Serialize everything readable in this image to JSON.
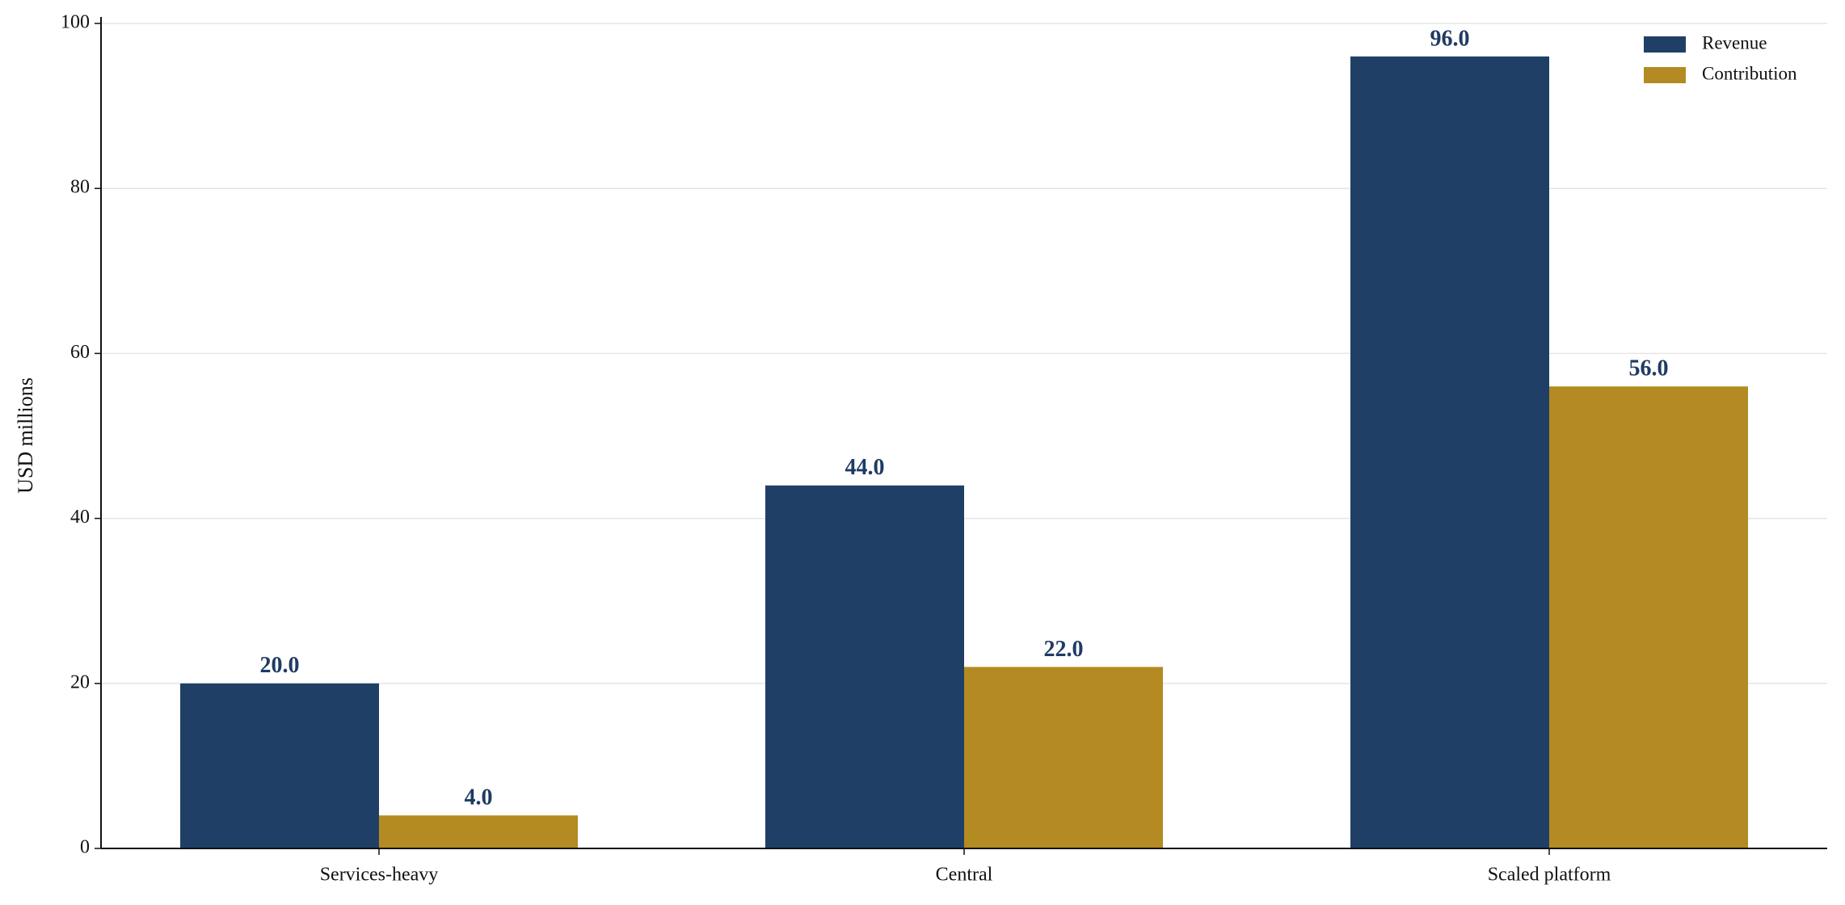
{
  "chart_data": {
    "type": "bar",
    "y_label": "USD millions",
    "categories": [
      "Services-heavy",
      "Central",
      "Scaled platform"
    ],
    "series": [
      {
        "name": "Revenue",
        "color": "#203f66",
        "values": [
          20,
          44,
          96
        ],
        "value_labels": [
          "20.0",
          "44.0",
          "96.0"
        ]
      },
      {
        "name": "Contribution",
        "color": "#b38b22",
        "values": [
          4,
          22,
          56
        ],
        "value_labels": [
          "4.0",
          "22.0",
          "56.0"
        ]
      }
    ],
    "ylim": [
      0,
      100
    ],
    "yticks": [
      0,
      20,
      40,
      60,
      80,
      100
    ],
    "grid": true,
    "legend": "upper right"
  }
}
